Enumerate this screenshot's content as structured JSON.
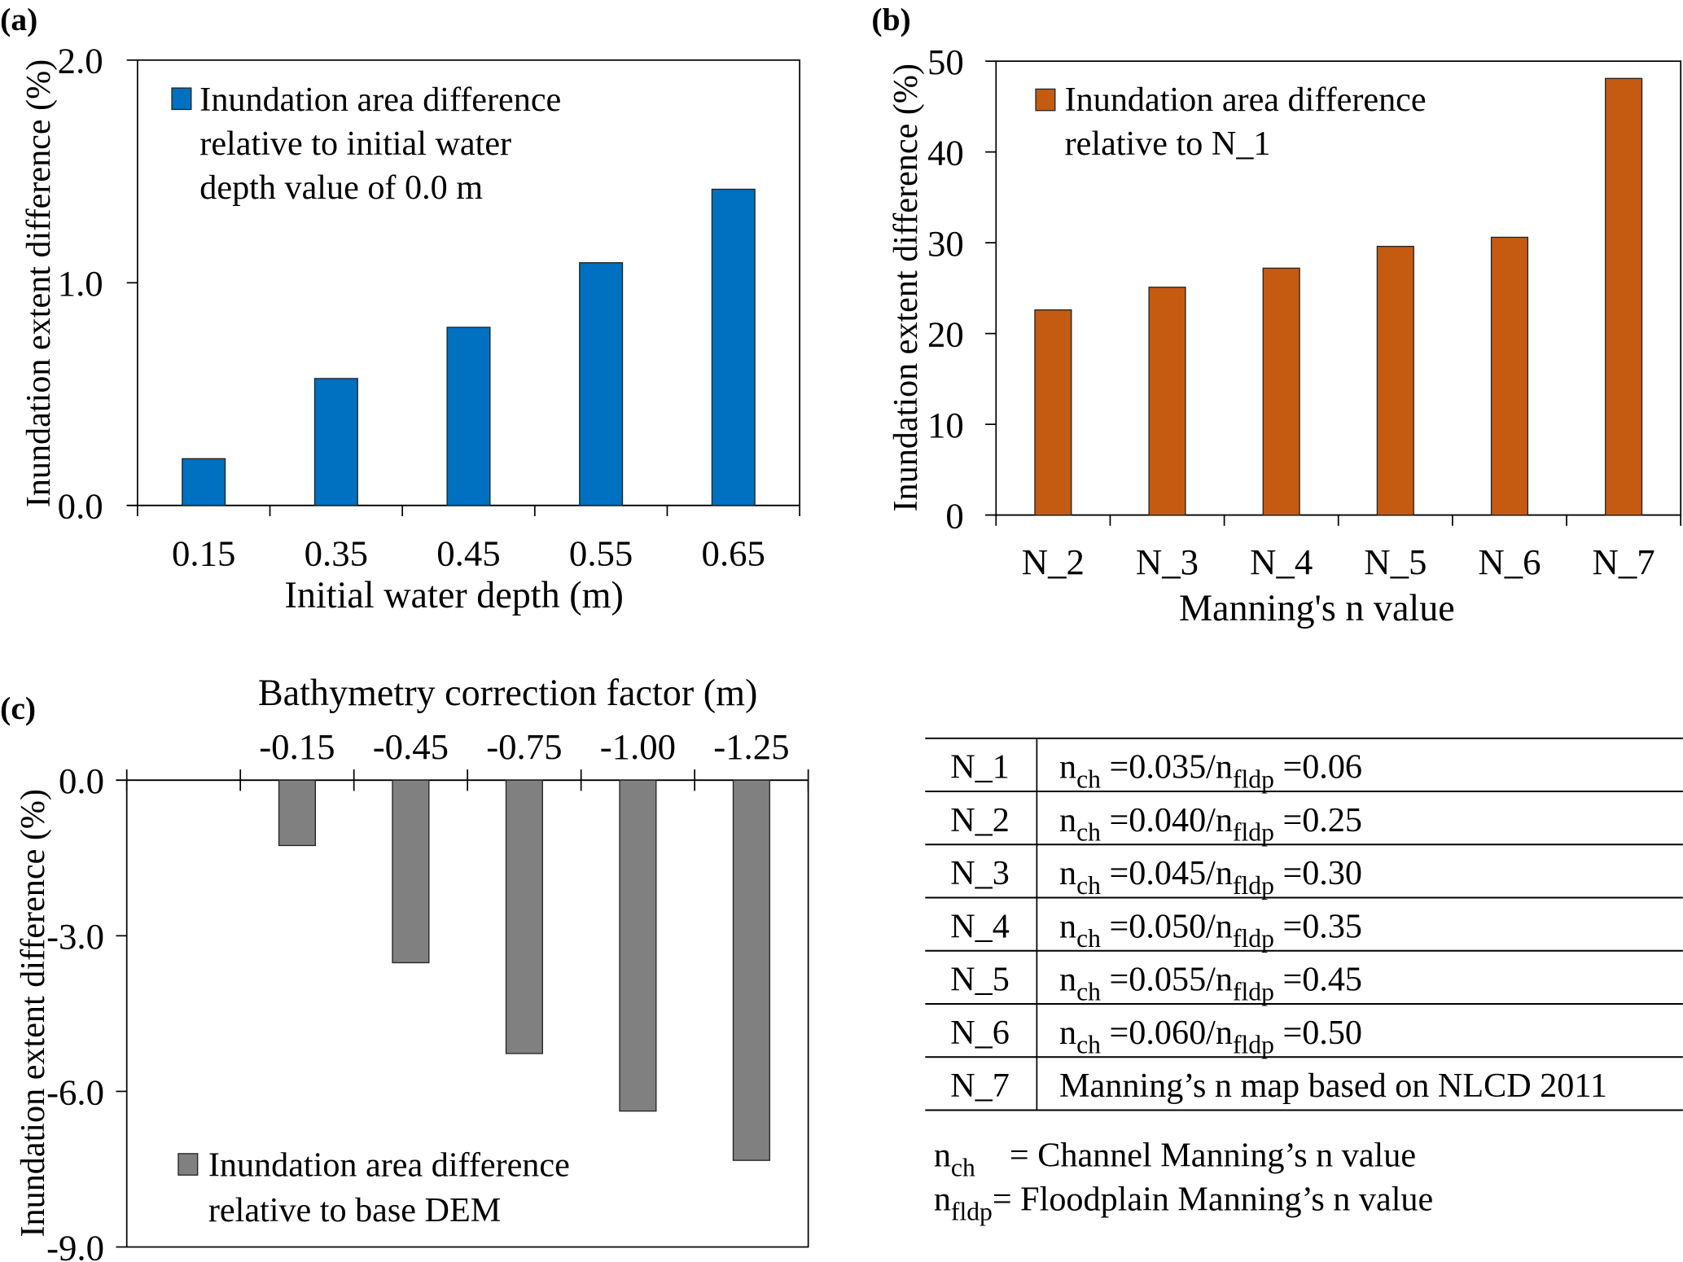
{
  "colors": {
    "a": "#0070C0",
    "b": "#C55A11",
    "c": "#808080",
    "axis": "#000000"
  },
  "chart_data": [
    {
      "panel": "(a)",
      "type": "bar",
      "xlabel": "Initial water depth (m)",
      "ylabel": "Inundation extent difference (%)",
      "categories": [
        "0.15",
        "0.35",
        "0.45",
        "0.55",
        "0.65"
      ],
      "series": [
        {
          "name": "Inundation area difference relative to initial water depth value of 0.0 m",
          "legend_lines": [
            "Inundation area difference",
            "relative to initial water",
            "depth value of 0.0 m"
          ],
          "values": [
            0.21,
            0.57,
            0.8,
            1.09,
            1.42
          ]
        }
      ],
      "ylim": [
        0,
        2.0
      ],
      "yticks": [
        "0.0",
        "1.0",
        "2.0"
      ],
      "legend": "top-left",
      "grid": false
    },
    {
      "panel": "(b)",
      "type": "bar",
      "xlabel": "Manning's n value",
      "ylabel": "Inundation extent difference (%)",
      "categories": [
        "N_2",
        "N_3",
        "N_4",
        "N_5",
        "N_6",
        "N_7"
      ],
      "series": [
        {
          "name": "Inundation area difference relative to N_1",
          "legend_lines": [
            "Inundation area difference",
            "relative to N_1"
          ],
          "values": [
            22.6,
            25.1,
            27.2,
            29.6,
            30.6,
            48.1
          ]
        }
      ],
      "ylim": [
        0,
        50
      ],
      "yticks": [
        "0",
        "10",
        "20",
        "30",
        "40",
        "50"
      ],
      "legend": "top-left",
      "grid": false
    },
    {
      "panel": "(c)",
      "type": "bar",
      "xlabel": "Bathymetry correction factor (m)",
      "ylabel": "Inundation extent difference (%)",
      "categories": [
        "",
        "-0.15",
        "-0.45",
        "-0.75",
        "-1.00",
        "-1.25"
      ],
      "series": [
        {
          "name": "Inundation area difference relative to base DEM",
          "legend_lines": [
            "Inundation area difference",
            "relative to base DEM"
          ],
          "values": [
            null,
            -1.26,
            -3.52,
            -5.27,
            -6.38,
            -7.33
          ]
        }
      ],
      "ylim": [
        -9.0,
        0.0
      ],
      "yticks": [
        "-9.0",
        "-6.0",
        "-3.0",
        "0.0"
      ],
      "xaxis_position": "top",
      "legend": "bottom-left",
      "grid": false
    }
  ],
  "table": {
    "rows": [
      {
        "code": "N_1",
        "nch": "=0.035/",
        "nfldp": "=0.06"
      },
      {
        "code": "N_2",
        "nch": "=0.040/",
        "nfldp": "=0.25"
      },
      {
        "code": "N_3",
        "nch": "=0.045/",
        "nfldp": "=0.30"
      },
      {
        "code": "N_4",
        "nch": "=0.050/",
        "nfldp": "=0.35"
      },
      {
        "code": "N_5",
        "nch": "=0.055/",
        "nfldp": "=0.45"
      },
      {
        "code": "N_6",
        "nch": "=0.060/",
        "nfldp": "=0.50"
      },
      {
        "code": "N_7",
        "text": "Manning’s n map based on NLCD 2011"
      }
    ],
    "symbol_n": "n",
    "sub_ch": "ch",
    "sub_fldp": "fldp",
    "notes": [
      {
        "sub": "ch",
        "text": "  = Channel Manning’s n value"
      },
      {
        "sub": "fldp",
        "text": "= Floodplain Manning’s n value"
      }
    ]
  }
}
